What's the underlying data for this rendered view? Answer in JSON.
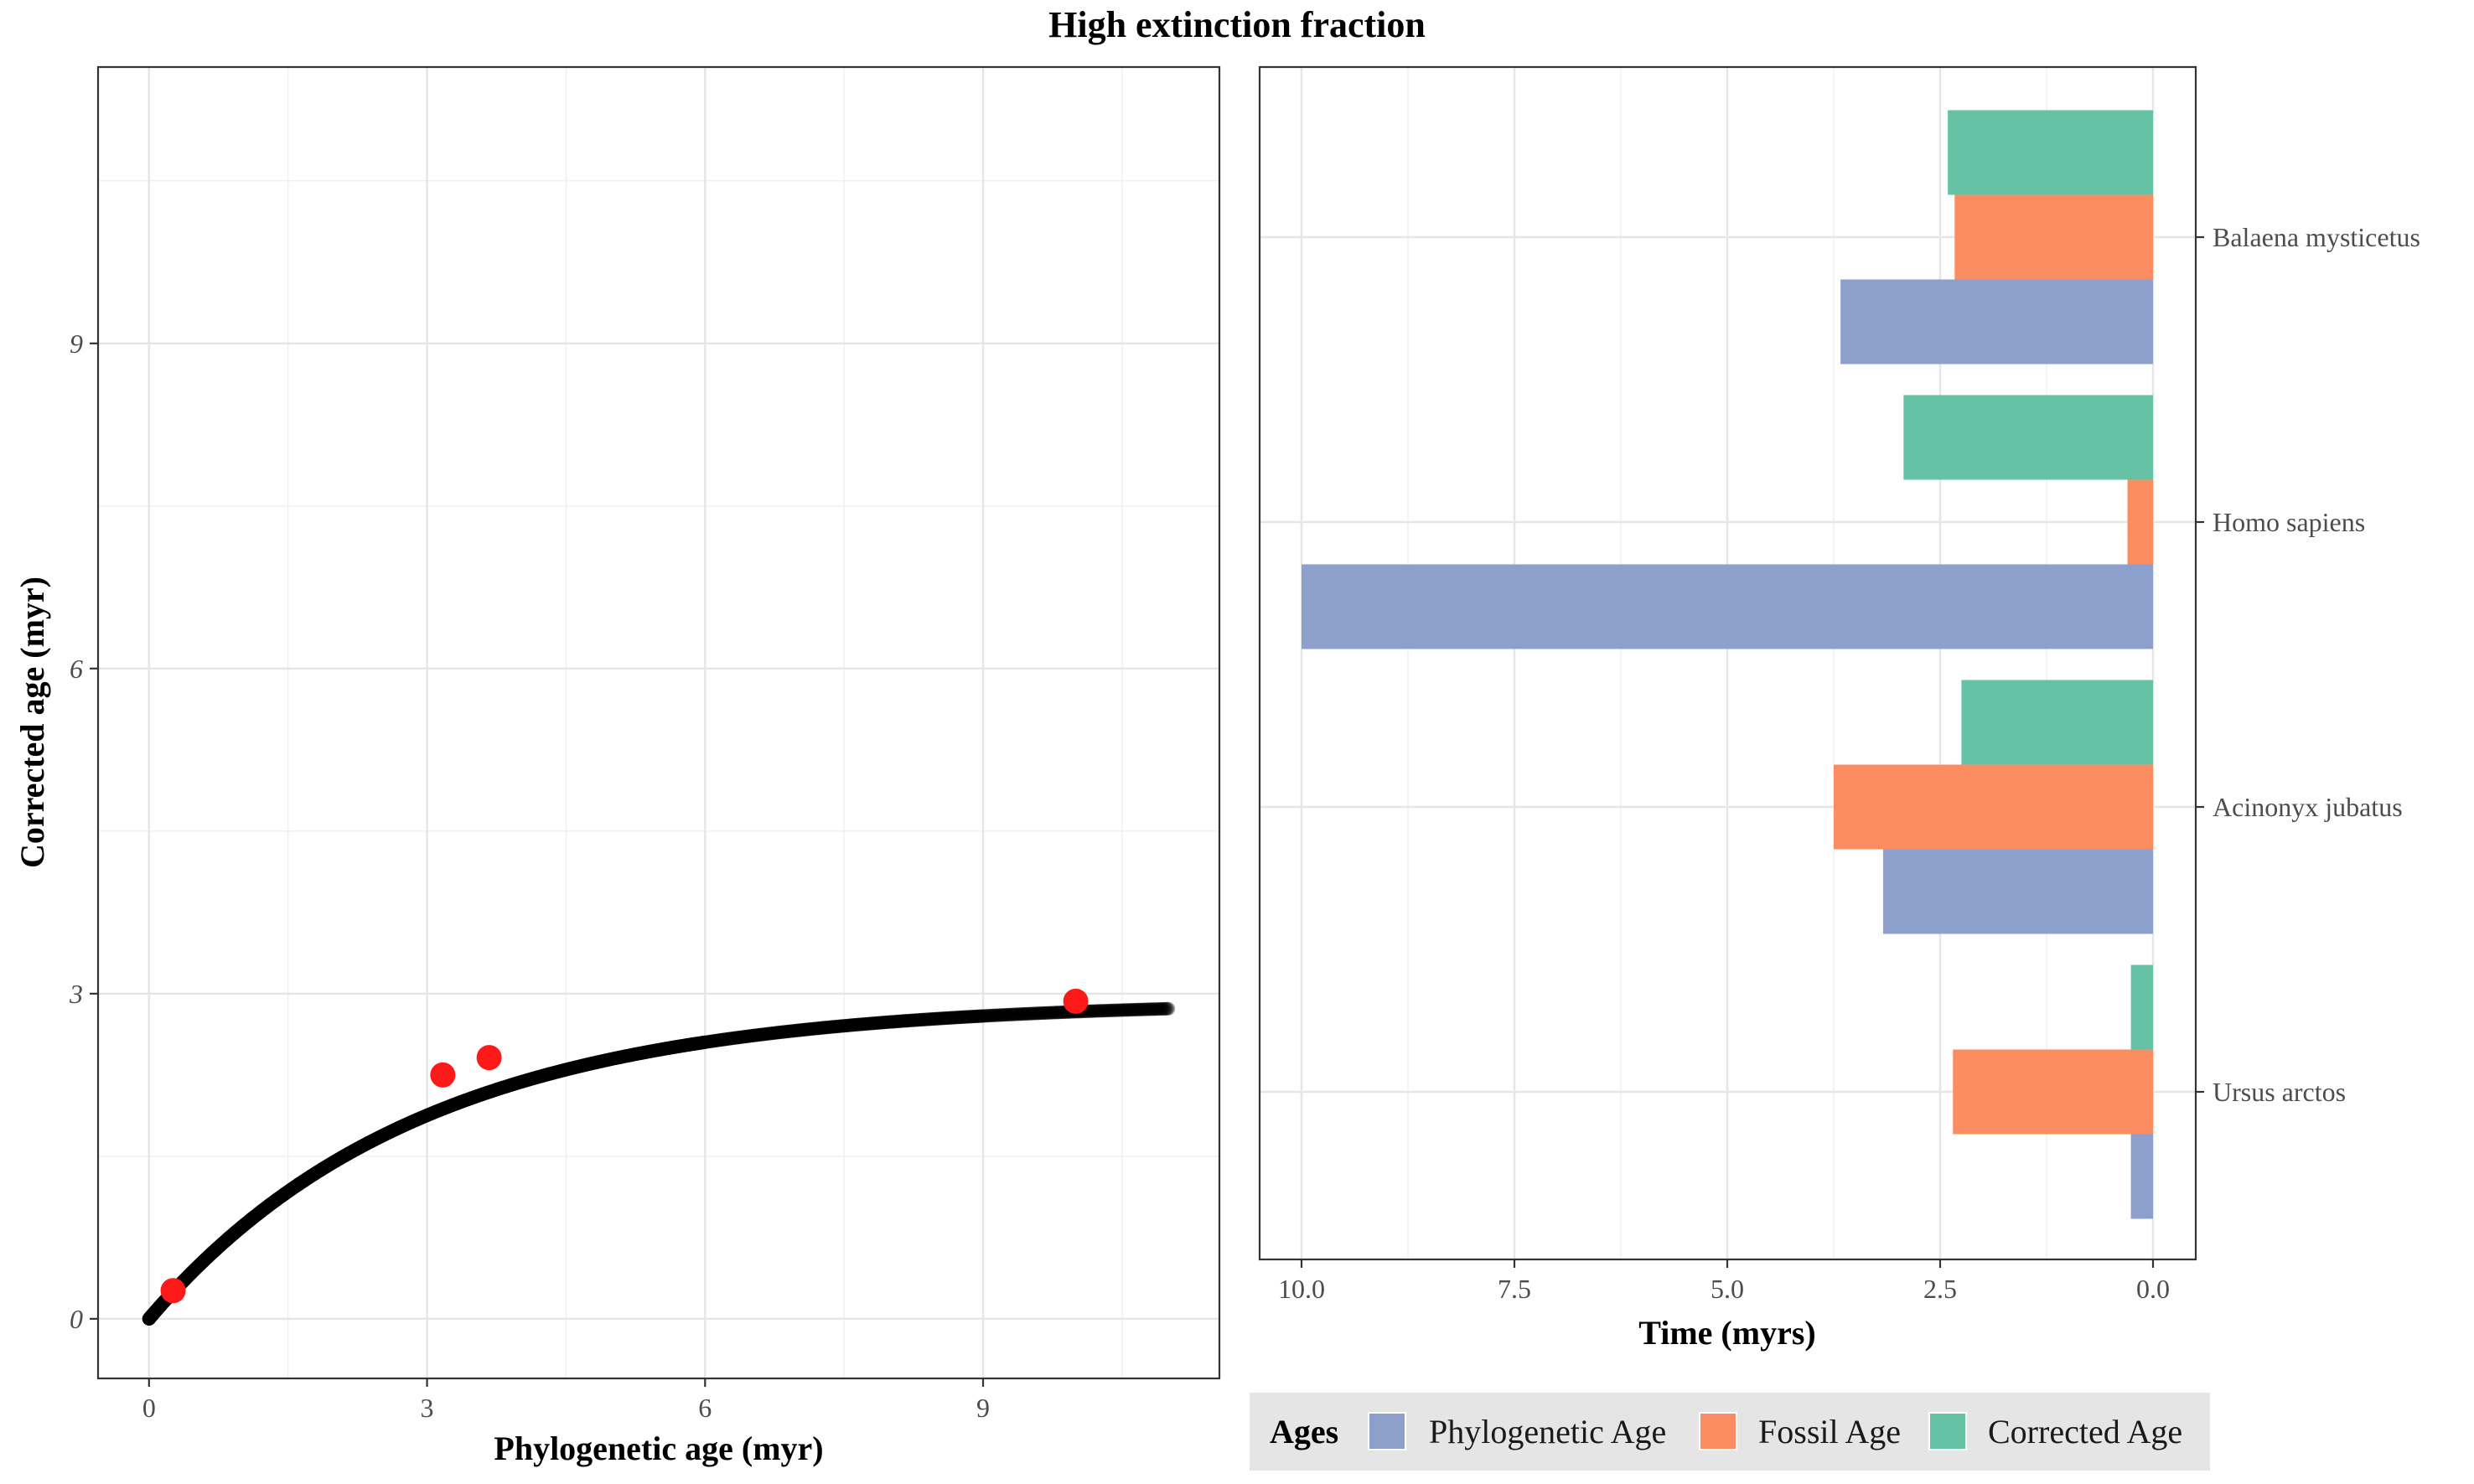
{
  "title": "High extinction fraction",
  "chart_data": [
    {
      "type": "scatter",
      "xlabel": "Phylogenetic age (myr)",
      "ylabel": "Corrected age (myr)",
      "xlim": [
        -0.55,
        11.55
      ],
      "ylim": [
        -0.55,
        11.55
      ],
      "xticks": [
        0,
        3,
        6,
        9
      ],
      "yticks": [
        0,
        3,
        6,
        9
      ],
      "grid": true,
      "curve": {
        "description_points_x_max": 11,
        "corrected_asymptote": 2.93,
        "rate": 0.45
      },
      "highlighted_points": [
        {
          "x": 0.26,
          "y": 0.26
        },
        {
          "x": 3.17,
          "y": 2.25
        },
        {
          "x": 3.67,
          "y": 2.41
        },
        {
          "x": 10.0,
          "y": 2.93
        }
      ],
      "colors": {
        "points": "#000000",
        "highlight": "#ff1a1a"
      }
    },
    {
      "type": "bar",
      "orientation": "horizontal",
      "xlabel": "Time (myrs)",
      "ylabel": "",
      "xlim": [
        0,
        10
      ],
      "x_reversed": true,
      "xticks": [
        "10.0",
        "7.5",
        "5.0",
        "2.5",
        "0.0"
      ],
      "xtick_values": [
        10,
        7.5,
        5,
        2.5,
        0
      ],
      "grid": true,
      "categories": [
        "Balaena mysticetus",
        "Homo sapiens",
        "Acinonyx jubatus",
        "Ursus arctos"
      ],
      "series": [
        {
          "name": "Phylogenetic Age",
          "color": "#8da0cb",
          "values": [
            3.67,
            10.0,
            3.17,
            0.26
          ]
        },
        {
          "name": "Fossil Age",
          "color": "#fc8d62",
          "values": [
            2.33,
            0.3,
            3.75,
            2.35
          ]
        },
        {
          "name": "Corrected Age",
          "color": "#66c2a5",
          "values": [
            2.41,
            2.93,
            2.25,
            0.26
          ]
        }
      ],
      "legend": {
        "title": "Ages",
        "position": "bottom",
        "items": [
          "Phylogenetic Age",
          "Fossil Age",
          "Corrected Age"
        ]
      }
    }
  ]
}
